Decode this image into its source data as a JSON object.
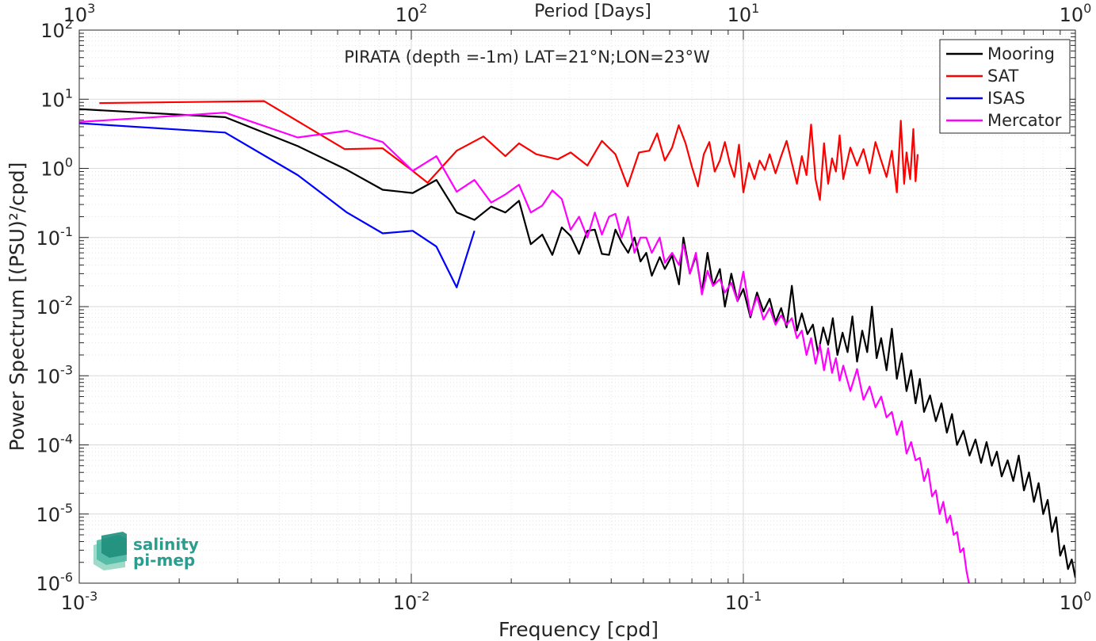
{
  "chart_data": {
    "type": "line",
    "title": "PIRATA (depth =-1m) LAT=21°N;LON=23°W",
    "xlabel": "Frequency [cpd]",
    "ylabel": "Power Spectrum [(PSU)²/cpd]",
    "top_xlabel": "Period [Days]",
    "xscale": "log",
    "yscale": "log",
    "xlim": [
      0.001,
      1
    ],
    "ylim": [
      1e-06,
      100
    ],
    "grid": true,
    "legend_position": "top-right",
    "x_ticks": [
      {
        "value": 0.001,
        "label": "10",
        "exp": "-3"
      },
      {
        "value": 0.01,
        "label": "10",
        "exp": "-2"
      },
      {
        "value": 0.1,
        "label": "10",
        "exp": "-1"
      },
      {
        "value": 1,
        "label": "10",
        "exp": "0"
      }
    ],
    "top_ticks": [
      {
        "value": 0.001,
        "label": "10",
        "exp": "3"
      },
      {
        "value": 0.01,
        "label": "10",
        "exp": "2"
      },
      {
        "value": 0.1,
        "label": "10",
        "exp": "1"
      },
      {
        "value": 1,
        "label": "10",
        "exp": "0"
      }
    ],
    "y_ticks": [
      {
        "value": 100,
        "label": "10",
        "exp": "2"
      },
      {
        "value": 10,
        "label": "10",
        "exp": "1"
      },
      {
        "value": 1,
        "label": "10",
        "exp": "0"
      },
      {
        "value": 0.1,
        "label": "10",
        "exp": "-1"
      },
      {
        "value": 0.01,
        "label": "10",
        "exp": "-2"
      },
      {
        "value": 0.001,
        "label": "10",
        "exp": "-3"
      },
      {
        "value": 0.0001,
        "label": "10",
        "exp": "-4"
      },
      {
        "value": 1e-05,
        "label": "10",
        "exp": "-5"
      },
      {
        "value": 1e-06,
        "label": "10",
        "exp": "-6"
      }
    ],
    "series": [
      {
        "name": "Mooring",
        "color": "#000000",
        "points": [
          [
            0.001,
            7.2
          ],
          [
            0.00275,
            5.5
          ],
          [
            0.00455,
            2.1
          ],
          [
            0.0064,
            0.95
          ],
          [
            0.0082,
            0.49
          ],
          [
            0.0101,
            0.44
          ],
          [
            0.0119,
            0.68
          ],
          [
            0.0137,
            0.23
          ],
          [
            0.0155,
            0.18
          ],
          [
            0.0174,
            0.28
          ],
          [
            0.0192,
            0.23
          ],
          [
            0.0211,
            0.34
          ],
          [
            0.0229,
            0.08
          ],
          [
            0.0248,
            0.11
          ],
          [
            0.0266,
            0.056
          ],
          [
            0.0284,
            0.14
          ],
          [
            0.0302,
            0.105
          ],
          [
            0.032,
            0.058
          ],
          [
            0.0339,
            0.125
          ],
          [
            0.0357,
            0.13
          ],
          [
            0.0375,
            0.058
          ],
          [
            0.0394,
            0.056
          ],
          [
            0.0412,
            0.13
          ],
          [
            0.043,
            0.085
          ],
          [
            0.045,
            0.06
          ],
          [
            0.047,
            0.1
          ],
          [
            0.049,
            0.045
          ],
          [
            0.051,
            0.06
          ],
          [
            0.053,
            0.028
          ],
          [
            0.056,
            0.052
          ],
          [
            0.058,
            0.035
          ],
          [
            0.061,
            0.055
          ],
          [
            0.064,
            0.021
          ],
          [
            0.066,
            0.1
          ],
          [
            0.069,
            0.03
          ],
          [
            0.072,
            0.055
          ],
          [
            0.075,
            0.016
          ],
          [
            0.078,
            0.06
          ],
          [
            0.081,
            0.02
          ],
          [
            0.085,
            0.035
          ],
          [
            0.088,
            0.01
          ],
          [
            0.092,
            0.03
          ],
          [
            0.096,
            0.012
          ],
          [
            0.1,
            0.018
          ],
          [
            0.105,
            0.007
          ],
          [
            0.11,
            0.016
          ],
          [
            0.115,
            0.0085
          ],
          [
            0.12,
            0.013
          ],
          [
            0.125,
            0.006
          ],
          [
            0.13,
            0.0095
          ],
          [
            0.135,
            0.005
          ],
          [
            0.14,
            0.02
          ],
          [
            0.145,
            0.0045
          ],
          [
            0.15,
            0.008
          ],
          [
            0.156,
            0.004
          ],
          [
            0.162,
            0.0055
          ],
          [
            0.168,
            0.0021
          ],
          [
            0.174,
            0.005
          ],
          [
            0.18,
            0.0028
          ],
          [
            0.186,
            0.0068
          ],
          [
            0.192,
            0.002
          ],
          [
            0.199,
            0.0042
          ],
          [
            0.206,
            0.0022
          ],
          [
            0.213,
            0.0072
          ],
          [
            0.22,
            0.0016
          ],
          [
            0.228,
            0.0045
          ],
          [
            0.236,
            0.0022
          ],
          [
            0.244,
            0.01
          ],
          [
            0.252,
            0.0018
          ],
          [
            0.26,
            0.0035
          ],
          [
            0.27,
            0.0012
          ],
          [
            0.28,
            0.0048
          ],
          [
            0.29,
            0.0009
          ],
          [
            0.3,
            0.0021
          ],
          [
            0.31,
            0.0006
          ],
          [
            0.32,
            0.0012
          ],
          [
            0.33,
            0.0004
          ],
          [
            0.34,
            0.0009
          ],
          [
            0.35,
            0.0003
          ],
          [
            0.365,
            0.00052
          ],
          [
            0.38,
            0.00022
          ],
          [
            0.395,
            0.0004
          ],
          [
            0.41,
            0.00015
          ],
          [
            0.425,
            0.00028
          ],
          [
            0.44,
            0.0001
          ],
          [
            0.46,
            0.00016
          ],
          [
            0.48,
            7e-05
          ],
          [
            0.5,
            0.00012
          ],
          [
            0.52,
            5.5e-05
          ],
          [
            0.54,
            0.00011
          ],
          [
            0.56,
            5e-05
          ],
          [
            0.58,
            8e-05
          ],
          [
            0.6,
            3.5e-05
          ],
          [
            0.625,
            6e-05
          ],
          [
            0.65,
            3e-05
          ],
          [
            0.675,
            7e-05
          ],
          [
            0.7,
            2.2e-05
          ],
          [
            0.725,
            4e-05
          ],
          [
            0.75,
            1.5e-05
          ],
          [
            0.775,
            2.8e-05
          ],
          [
            0.8,
            1e-05
          ],
          [
            0.825,
            1.6e-05
          ],
          [
            0.85,
            5.5e-06
          ],
          [
            0.875,
            9e-06
          ],
          [
            0.9,
            2.5e-06
          ],
          [
            0.925,
            3.5e-06
          ],
          [
            0.95,
            1.6e-06
          ],
          [
            0.975,
            2.2e-06
          ],
          [
            1.0,
            1.2e-06
          ]
        ]
      },
      {
        "name": "SAT",
        "color": "#ff0000",
        "points": [
          [
            0.00115,
            8.8
          ],
          [
            0.0036,
            9.4
          ],
          [
            0.0063,
            1.9
          ],
          [
            0.0082,
            1.95
          ],
          [
            0.01,
            0.95
          ],
          [
            0.0112,
            0.62
          ],
          [
            0.0137,
            1.8
          ],
          [
            0.0165,
            2.9
          ],
          [
            0.0192,
            1.5
          ],
          [
            0.0211,
            2.3
          ],
          [
            0.0238,
            1.6
          ],
          [
            0.0276,
            1.35
          ],
          [
            0.0302,
            1.7
          ],
          [
            0.0339,
            1.1
          ],
          [
            0.0375,
            2.5
          ],
          [
            0.0412,
            1.6
          ],
          [
            0.0448,
            0.55
          ],
          [
            0.0485,
            1.7
          ],
          [
            0.0521,
            1.8
          ],
          [
            0.055,
            3.2
          ],
          [
            0.058,
            1.3
          ],
          [
            0.061,
            2.0
          ],
          [
            0.0639,
            4.2
          ],
          [
            0.067,
            2.3
          ],
          [
            0.07,
            1.05
          ],
          [
            0.073,
            0.55
          ],
          [
            0.076,
            1.6
          ],
          [
            0.079,
            2.4
          ],
          [
            0.082,
            0.9
          ],
          [
            0.085,
            1.3
          ],
          [
            0.088,
            2.4
          ],
          [
            0.091,
            1.2
          ],
          [
            0.094,
            0.75
          ],
          [
            0.097,
            2.2
          ],
          [
            0.1,
            0.45
          ],
          [
            0.104,
            1.2
          ],
          [
            0.108,
            0.7
          ],
          [
            0.112,
            1.3
          ],
          [
            0.116,
            0.95
          ],
          [
            0.12,
            1.6
          ],
          [
            0.125,
            0.85
          ],
          [
            0.13,
            1.5
          ],
          [
            0.135,
            2.5
          ],
          [
            0.14,
            1.2
          ],
          [
            0.145,
            0.6
          ],
          [
            0.15,
            1.5
          ],
          [
            0.155,
            0.8
          ],
          [
            0.16,
            4.3
          ],
          [
            0.165,
            0.7
          ],
          [
            0.17,
            0.35
          ],
          [
            0.175,
            2.3
          ],
          [
            0.18,
            0.6
          ],
          [
            0.185,
            1.4
          ],
          [
            0.19,
            0.9
          ],
          [
            0.195,
            3.0
          ],
          [
            0.2,
            0.7
          ],
          [
            0.21,
            2.0
          ],
          [
            0.22,
            1.1
          ],
          [
            0.23,
            1.9
          ],
          [
            0.24,
            0.85
          ],
          [
            0.25,
            2.4
          ],
          [
            0.26,
            1.3
          ],
          [
            0.27,
            0.75
          ],
          [
            0.28,
            1.8
          ],
          [
            0.29,
            0.45
          ],
          [
            0.298,
            4.9
          ],
          [
            0.305,
            0.6
          ],
          [
            0.31,
            1.7
          ],
          [
            0.318,
            0.7
          ],
          [
            0.325,
            3.7
          ],
          [
            0.33,
            0.65
          ],
          [
            0.335,
            1.6
          ]
        ]
      },
      {
        "name": "ISAS",
        "color": "#0000ff",
        "points": [
          [
            0.001,
            4.5
          ],
          [
            0.00275,
            3.3
          ],
          [
            0.00455,
            0.8
          ],
          [
            0.0064,
            0.23
          ],
          [
            0.0082,
            0.115
          ],
          [
            0.0101,
            0.125
          ],
          [
            0.0119,
            0.074
          ],
          [
            0.0137,
            0.019
          ],
          [
            0.0155,
            0.125
          ]
        ]
      },
      {
        "name": "Mercator",
        "color": "#ff00ff",
        "points": [
          [
            0.001,
            4.7
          ],
          [
            0.00275,
            6.4
          ],
          [
            0.00455,
            2.8
          ],
          [
            0.0064,
            3.5
          ],
          [
            0.0082,
            2.4
          ],
          [
            0.0101,
            0.92
          ],
          [
            0.0119,
            1.5
          ],
          [
            0.0137,
            0.46
          ],
          [
            0.0155,
            0.68
          ],
          [
            0.0174,
            0.32
          ],
          [
            0.0192,
            0.42
          ],
          [
            0.0211,
            0.58
          ],
          [
            0.0229,
            0.23
          ],
          [
            0.0248,
            0.29
          ],
          [
            0.0266,
            0.48
          ],
          [
            0.0284,
            0.36
          ],
          [
            0.0302,
            0.13
          ],
          [
            0.032,
            0.2
          ],
          [
            0.0339,
            0.1
          ],
          [
            0.0357,
            0.23
          ],
          [
            0.0375,
            0.11
          ],
          [
            0.0394,
            0.2
          ],
          [
            0.0412,
            0.22
          ],
          [
            0.043,
            0.1
          ],
          [
            0.045,
            0.2
          ],
          [
            0.047,
            0.06
          ],
          [
            0.049,
            0.1
          ],
          [
            0.051,
            0.1
          ],
          [
            0.053,
            0.06
          ],
          [
            0.056,
            0.1
          ],
          [
            0.058,
            0.043
          ],
          [
            0.061,
            0.06
          ],
          [
            0.064,
            0.04
          ],
          [
            0.066,
            0.08
          ],
          [
            0.069,
            0.03
          ],
          [
            0.072,
            0.06
          ],
          [
            0.075,
            0.015
          ],
          [
            0.078,
            0.033
          ],
          [
            0.081,
            0.02
          ],
          [
            0.085,
            0.025
          ],
          [
            0.088,
            0.016
          ],
          [
            0.092,
            0.022
          ],
          [
            0.096,
            0.012
          ],
          [
            0.1,
            0.032
          ],
          [
            0.105,
            0.0075
          ],
          [
            0.11,
            0.014
          ],
          [
            0.115,
            0.0065
          ],
          [
            0.12,
            0.0095
          ],
          [
            0.125,
            0.0055
          ],
          [
            0.13,
            0.0075
          ],
          [
            0.135,
            0.0055
          ],
          [
            0.14,
            0.0068
          ],
          [
            0.145,
            0.0035
          ],
          [
            0.15,
            0.0045
          ],
          [
            0.155,
            0.002
          ],
          [
            0.16,
            0.0035
          ],
          [
            0.165,
            0.0015
          ],
          [
            0.17,
            0.0028
          ],
          [
            0.175,
            0.0012
          ],
          [
            0.18,
            0.0025
          ],
          [
            0.185,
            0.0011
          ],
          [
            0.19,
            0.0018
          ],
          [
            0.195,
            0.00085
          ],
          [
            0.2,
            0.0014
          ],
          [
            0.21,
            0.0006
          ],
          [
            0.22,
            0.00125
          ],
          [
            0.23,
            0.00045
          ],
          [
            0.24,
            0.0007
          ],
          [
            0.25,
            0.00035
          ],
          [
            0.26,
            0.0005
          ],
          [
            0.27,
            0.00025
          ],
          [
            0.28,
            0.0003
          ],
          [
            0.29,
            0.00014
          ],
          [
            0.3,
            0.00022
          ],
          [
            0.31,
            7.5e-05
          ],
          [
            0.32,
            0.00011
          ],
          [
            0.33,
            6e-05
          ],
          [
            0.34,
            6.5e-05
          ],
          [
            0.35,
            3e-05
          ],
          [
            0.36,
            4.5e-05
          ],
          [
            0.37,
            1.8e-05
          ],
          [
            0.38,
            2.2e-05
          ],
          [
            0.39,
            1e-05
          ],
          [
            0.4,
            1.5e-05
          ],
          [
            0.41,
            7.5e-06
          ],
          [
            0.42,
            9.5e-06
          ],
          [
            0.43,
            5e-06
          ],
          [
            0.44,
            5.5e-06
          ],
          [
            0.45,
            2.8e-06
          ],
          [
            0.46,
            3.2e-06
          ],
          [
            0.47,
            1.5e-06
          ],
          [
            0.48,
            9e-07
          ]
        ]
      }
    ]
  },
  "logo": {
    "line1": "salinity",
    "line2": "pi-mep"
  }
}
